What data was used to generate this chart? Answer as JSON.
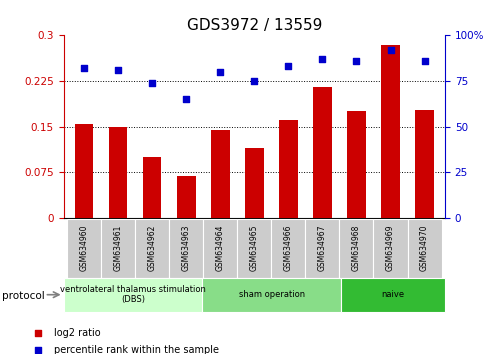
{
  "title": "GDS3972 / 13559",
  "samples": [
    "GSM634960",
    "GSM634961",
    "GSM634962",
    "GSM634963",
    "GSM634964",
    "GSM634965",
    "GSM634966",
    "GSM634967",
    "GSM634968",
    "GSM634969",
    "GSM634970"
  ],
  "log2_ratio": [
    0.155,
    0.15,
    0.1,
    0.068,
    0.145,
    0.115,
    0.16,
    0.215,
    0.175,
    0.285,
    0.178
  ],
  "percentile_rank": [
    82,
    81,
    74,
    65,
    80,
    75,
    83,
    87,
    86,
    92,
    86
  ],
  "bar_color": "#cc0000",
  "dot_color": "#0000cc",
  "ylim_left": [
    0,
    0.3
  ],
  "ylim_right": [
    0,
    100
  ],
  "yticks_left": [
    0,
    0.075,
    0.15,
    0.225,
    0.3
  ],
  "yticks_right": [
    0,
    25,
    50,
    75,
    100
  ],
  "ytick_labels_left": [
    "0",
    "0.075",
    "0.15",
    "0.225",
    "0.3"
  ],
  "ytick_labels_right": [
    "0",
    "25",
    "50",
    "75",
    "100%"
  ],
  "hlines": [
    0.075,
    0.15,
    0.225
  ],
  "groups": [
    {
      "label": "ventrolateral thalamus stimulation\n(DBS)",
      "start": 0,
      "end": 4,
      "color": "#ccffcc"
    },
    {
      "label": "sham operation",
      "start": 4,
      "end": 8,
      "color": "#88dd88"
    },
    {
      "label": "naive",
      "start": 8,
      "end": 11,
      "color": "#33bb33"
    }
  ],
  "protocol_label": "protocol",
  "legend_items": [
    {
      "label": "log2 ratio",
      "color": "#cc0000",
      "marker": "s"
    },
    {
      "label": "percentile rank within the sample",
      "color": "#0000cc",
      "marker": "s"
    }
  ],
  "tick_bg_color": "#cccccc",
  "title_fontsize": 11
}
